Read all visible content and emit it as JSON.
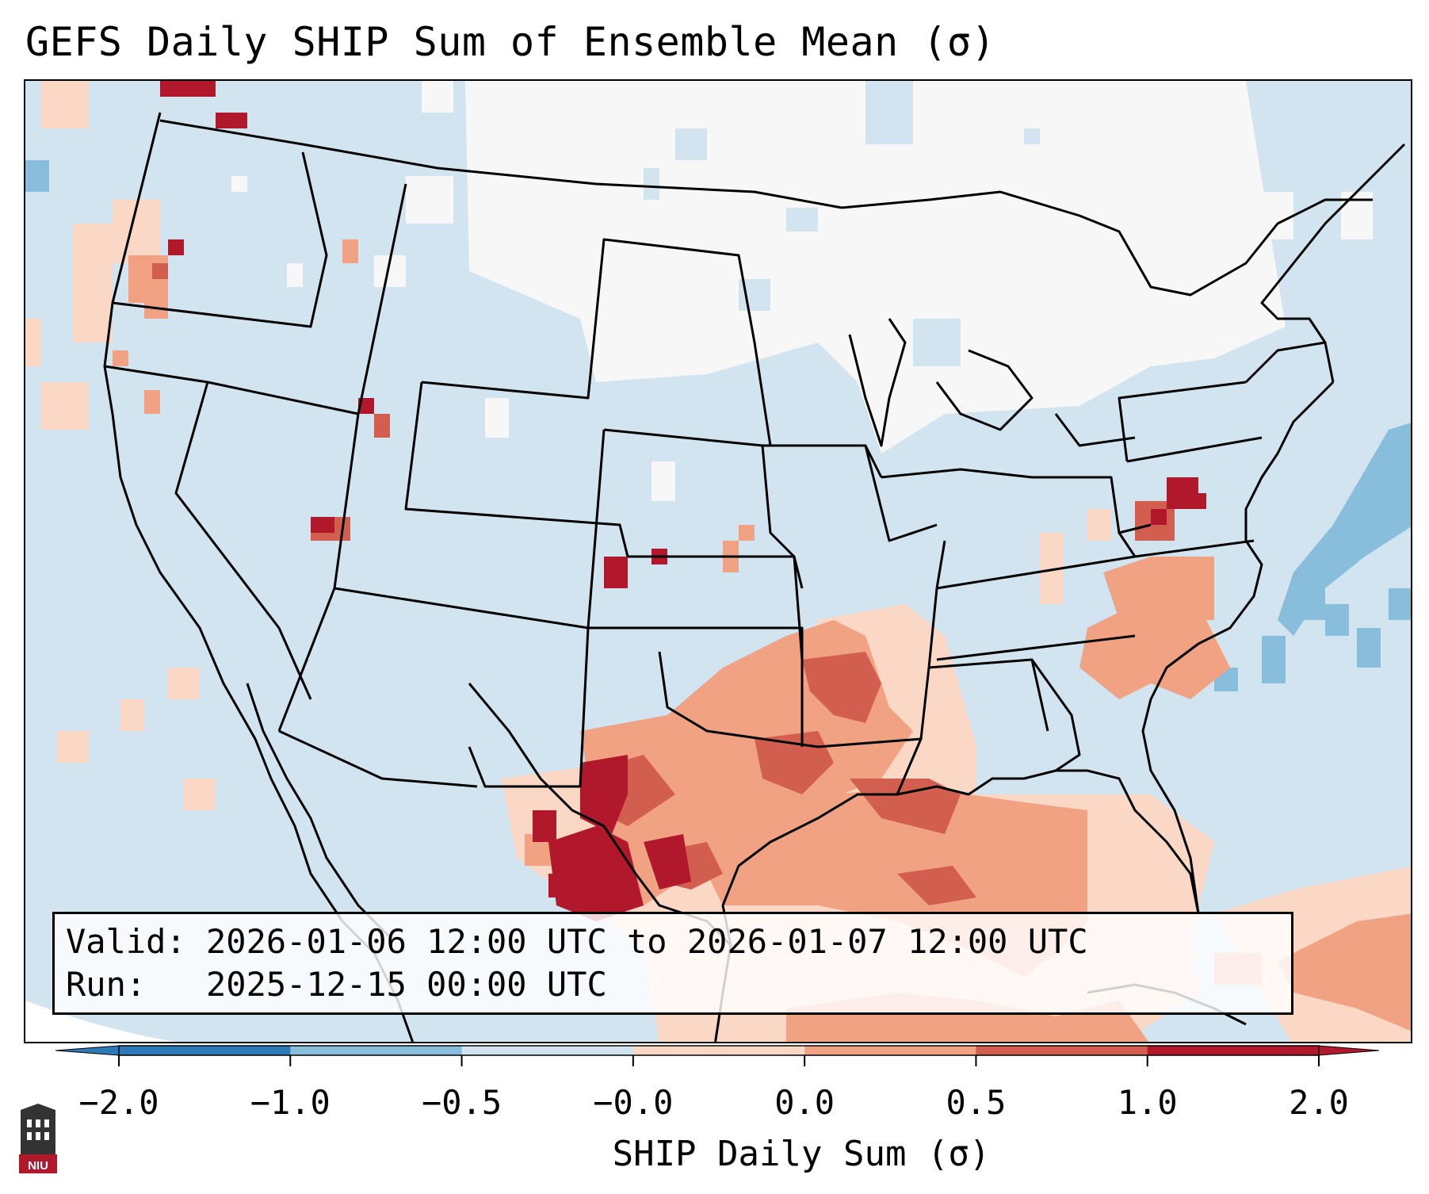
{
  "title": "GEFS Daily SHIP Sum of Ensemble Mean (σ)",
  "info_box": {
    "valid_label": "Valid:",
    "valid_value": "2026-01-06 12:00 UTC to 2026-01-07 12:00 UTC",
    "run_label": "Run:",
    "run_value": "2025-12-15 00:00 UTC"
  },
  "colorbar": {
    "label": "SHIP Daily Sum (σ)",
    "ticks": [
      "−2.0",
      "−1.0",
      "−0.5",
      "−0.0",
      "0.0",
      "0.5",
      "1.0",
      "2.0"
    ],
    "colors": [
      "#2d7ab9",
      "#88bedc",
      "#d2e4f0",
      "#f7f7f7",
      "#fbd8c5",
      "#f0a283",
      "#d15e4f",
      "#b2182b"
    ]
  },
  "logo": {
    "text": "NIU"
  }
}
